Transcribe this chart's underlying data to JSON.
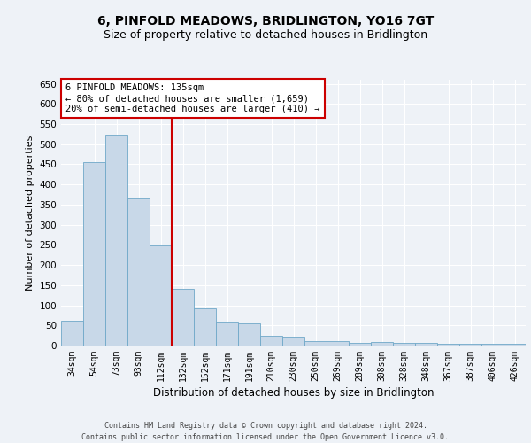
{
  "title": "6, PINFOLD MEADOWS, BRIDLINGTON, YO16 7GT",
  "subtitle": "Size of property relative to detached houses in Bridlington",
  "xlabel": "Distribution of detached houses by size in Bridlington",
  "ylabel": "Number of detached properties",
  "footer_line1": "Contains HM Land Registry data © Crown copyright and database right 2024.",
  "footer_line2": "Contains public sector information licensed under the Open Government Licence v3.0.",
  "categories": [
    "34sqm",
    "54sqm",
    "73sqm",
    "93sqm",
    "112sqm",
    "132sqm",
    "152sqm",
    "171sqm",
    "191sqm",
    "210sqm",
    "230sqm",
    "250sqm",
    "269sqm",
    "289sqm",
    "308sqm",
    "328sqm",
    "348sqm",
    "367sqm",
    "387sqm",
    "406sqm",
    "426sqm"
  ],
  "values": [
    62,
    455,
    523,
    366,
    248,
    140,
    92,
    59,
    54,
    25,
    23,
    10,
    12,
    7,
    8,
    6,
    6,
    4,
    5,
    4,
    5
  ],
  "bar_color": "#c8d8e8",
  "bar_edge_color": "#6fa8c8",
  "vline_x_index": 4.5,
  "vline_color": "#cc0000",
  "annotation_box_text": "6 PINFOLD MEADOWS: 135sqm\n← 80% of detached houses are smaller (1,659)\n20% of semi-detached houses are larger (410) →",
  "annotation_box_color": "#cc0000",
  "ylim": [
    0,
    660
  ],
  "yticks": [
    0,
    50,
    100,
    150,
    200,
    250,
    300,
    350,
    400,
    450,
    500,
    550,
    600,
    650
  ],
  "background_color": "#eef2f7",
  "plot_background": "#eef2f7",
  "grid_color": "#ffffff",
  "title_fontsize": 10,
  "subtitle_fontsize": 9,
  "xlabel_fontsize": 8.5,
  "ylabel_fontsize": 8,
  "annotation_fontsize": 7.5,
  "tick_fontsize": 7,
  "ytick_fontsize": 7.5,
  "footer_fontsize": 6
}
